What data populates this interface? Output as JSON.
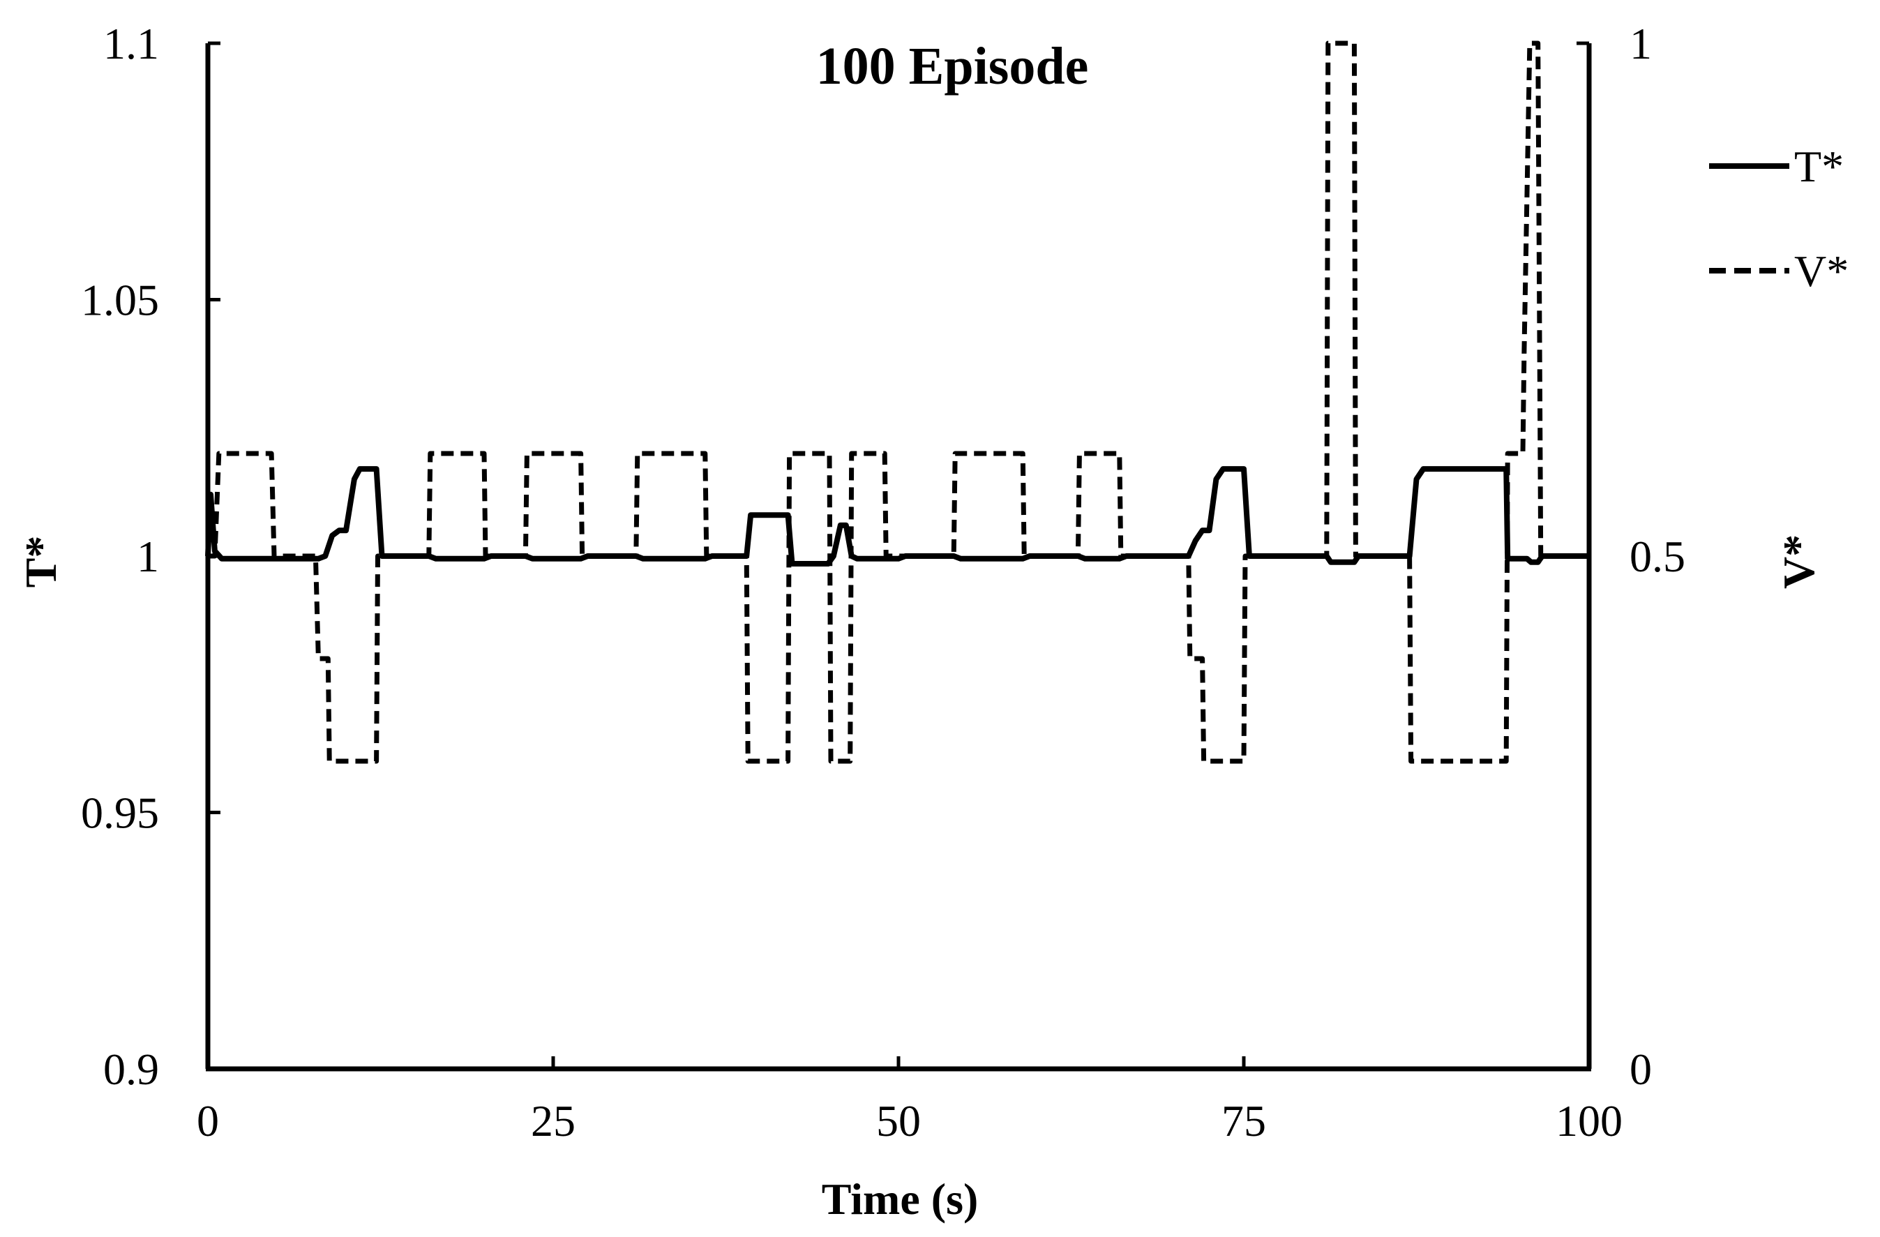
{
  "chart_data": {
    "type": "line",
    "title": "100 Episode",
    "xlabel": "Time (s)",
    "ylabel_left": "T*",
    "ylabel_right": "V*",
    "xlim": [
      0,
      100
    ],
    "ylim_left": [
      0.9,
      1.1
    ],
    "ylim_right": [
      0,
      1
    ],
    "x_ticks": [
      0,
      25,
      50,
      75,
      100
    ],
    "y_ticks_left": [
      "0.9",
      "0.95",
      "1",
      "1.05",
      "1.1"
    ],
    "y_ticks_right": [
      "0",
      "0.5",
      "1"
    ],
    "grid": false,
    "legend_position": "top-right",
    "series": [
      {
        "name": "T*",
        "axis": "left",
        "style": "solid",
        "points": [
          [
            0,
            1.0
          ],
          [
            0.2,
            1.012
          ],
          [
            0.5,
            1.001
          ],
          [
            1,
            0.9995
          ],
          [
            1.2,
            0.9995
          ],
          [
            5,
            0.9995
          ],
          [
            5.2,
            0.9995
          ],
          [
            8,
            0.9995
          ],
          [
            8.5,
            1.0
          ],
          [
            9,
            1.004
          ],
          [
            9.5,
            1.005
          ],
          [
            10,
            1.005
          ],
          [
            10.6,
            1.015
          ],
          [
            11,
            1.017
          ],
          [
            12.2,
            1.017
          ],
          [
            12.6,
            1.0
          ],
          [
            16,
            1.0
          ],
          [
            16.5,
            0.9995
          ],
          [
            20,
            0.9995
          ],
          [
            20.5,
            1.0
          ],
          [
            23,
            1.0
          ],
          [
            23.5,
            0.9995
          ],
          [
            27,
            0.9995
          ],
          [
            27.5,
            1.0
          ],
          [
            31,
            1.0
          ],
          [
            31.5,
            0.9995
          ],
          [
            36,
            0.9995
          ],
          [
            36.5,
            1.0
          ],
          [
            39,
            1.0
          ],
          [
            39.3,
            1.008
          ],
          [
            42,
            1.008
          ],
          [
            42.3,
            0.9985
          ],
          [
            44.9,
            0.9985
          ],
          [
            45.3,
            1.0
          ],
          [
            45.8,
            1.006
          ],
          [
            46.2,
            1.006
          ],
          [
            46.6,
            1.0
          ],
          [
            47,
            0.9995
          ],
          [
            50,
            0.9995
          ],
          [
            50.5,
            1.0
          ],
          [
            54,
            1.0
          ],
          [
            54.5,
            0.9995
          ],
          [
            59,
            0.9995
          ],
          [
            59.5,
            1.0
          ],
          [
            63,
            1.0
          ],
          [
            63.5,
            0.9995
          ],
          [
            66,
            0.9995
          ],
          [
            66.5,
            1.0
          ],
          [
            71,
            1.0
          ],
          [
            71.5,
            1.003
          ],
          [
            72,
            1.005
          ],
          [
            72.5,
            1.005
          ],
          [
            73,
            1.015
          ],
          [
            73.5,
            1.017
          ],
          [
            75,
            1.017
          ],
          [
            75.4,
            1.0
          ],
          [
            81,
            1.0
          ],
          [
            81.3,
            0.9988
          ],
          [
            83,
            0.9988
          ],
          [
            83.3,
            1.0
          ],
          [
            87,
            1.0
          ],
          [
            87.5,
            1.015
          ],
          [
            88,
            1.017
          ],
          [
            94,
            1.017
          ],
          [
            94.1,
            0.9995
          ],
          [
            95.5,
            0.9995
          ],
          [
            95.8,
            0.9988
          ],
          [
            96.3,
            0.9988
          ],
          [
            96.6,
            1.0
          ],
          [
            100,
            1.0
          ]
        ]
      },
      {
        "name": "V*",
        "axis": "right",
        "style": "dashed",
        "points": [
          [
            0,
            0.5
          ],
          [
            0.5,
            0.5
          ],
          [
            0.8,
            0.6
          ],
          [
            4.6,
            0.6
          ],
          [
            4.8,
            0.5
          ],
          [
            7.8,
            0.5
          ],
          [
            8,
            0.4
          ],
          [
            8.7,
            0.4
          ],
          [
            8.8,
            0.3
          ],
          [
            12.2,
            0.3
          ],
          [
            12.3,
            0.5
          ],
          [
            16,
            0.5
          ],
          [
            16.1,
            0.6
          ],
          [
            20,
            0.6
          ],
          [
            20.1,
            0.5
          ],
          [
            23,
            0.5
          ],
          [
            23.1,
            0.6
          ],
          [
            27,
            0.6
          ],
          [
            27.1,
            0.5
          ],
          [
            31,
            0.5
          ],
          [
            31.1,
            0.6
          ],
          [
            36,
            0.6
          ],
          [
            36.1,
            0.5
          ],
          [
            39,
            0.5
          ],
          [
            39.1,
            0.3
          ],
          [
            42,
            0.3
          ],
          [
            42.1,
            0.6
          ],
          [
            45,
            0.6
          ],
          [
            45.1,
            0.3
          ],
          [
            46.5,
            0.3
          ],
          [
            46.6,
            0.6
          ],
          [
            49,
            0.6
          ],
          [
            49.1,
            0.5
          ],
          [
            54,
            0.5
          ],
          [
            54.1,
            0.6
          ],
          [
            59,
            0.6
          ],
          [
            59.1,
            0.5
          ],
          [
            63,
            0.5
          ],
          [
            63.1,
            0.6
          ],
          [
            66,
            0.6
          ],
          [
            66.1,
            0.5
          ],
          [
            71,
            0.5
          ],
          [
            71.1,
            0.4
          ],
          [
            72,
            0.4
          ],
          [
            72.1,
            0.3
          ],
          [
            75,
            0.3
          ],
          [
            75.1,
            0.5
          ],
          [
            81,
            0.5
          ],
          [
            81.1,
            1.0
          ],
          [
            83,
            1.0
          ],
          [
            83.1,
            0.5
          ],
          [
            87,
            0.5
          ],
          [
            87.1,
            0.3
          ],
          [
            94,
            0.3
          ],
          [
            94.1,
            0.6
          ],
          [
            95.2,
            0.6
          ],
          [
            95.3,
            0.7
          ],
          [
            95.7,
            1.0
          ],
          [
            96.3,
            1.0
          ],
          [
            96.5,
            0.5
          ],
          [
            100,
            0.5
          ]
        ]
      }
    ]
  }
}
